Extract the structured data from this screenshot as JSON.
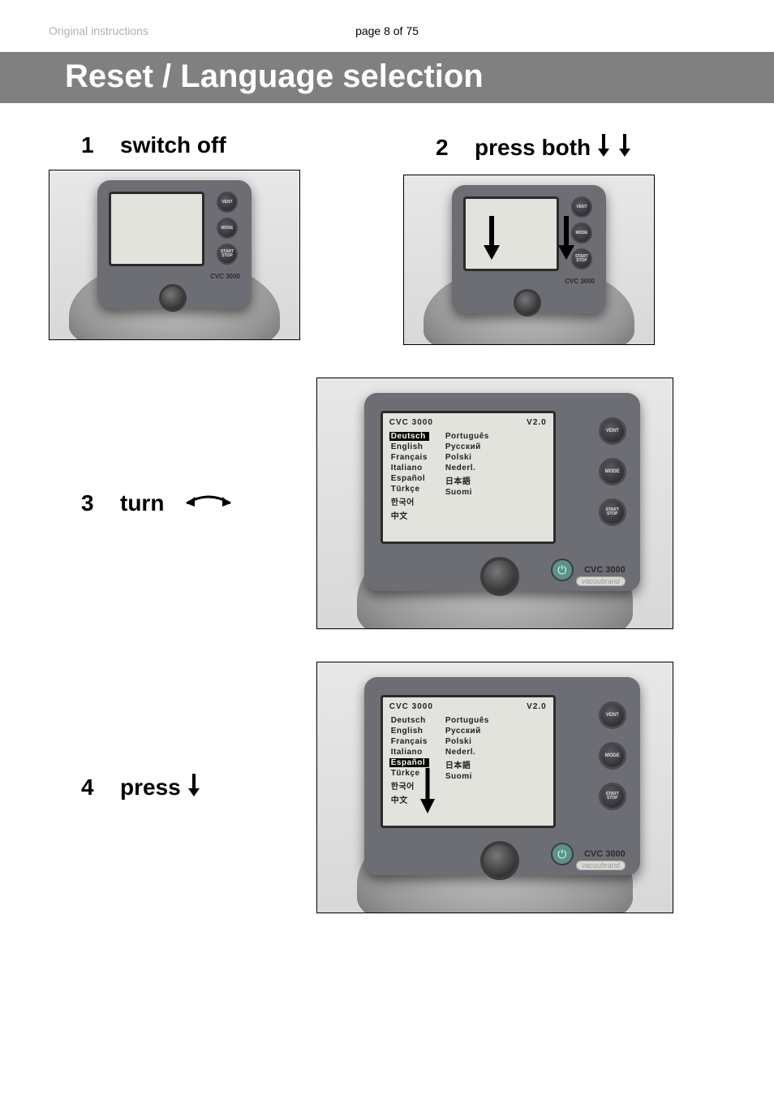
{
  "meta": {
    "doc_type": "Original instructions",
    "page_info": "page 8 of 75"
  },
  "title": "Reset  /  Language selection",
  "steps": {
    "s1": {
      "num": "1",
      "text": "switch off"
    },
    "s2": {
      "num": "2",
      "text": "press both"
    },
    "s3": {
      "num": "3",
      "text": "turn"
    },
    "s4": {
      "num": "4",
      "text": "press"
    }
  },
  "device": {
    "model": "CVC 3000",
    "brand": "vacuubrand",
    "buttons": {
      "vent": "VENT",
      "mode": "MODE",
      "start": "START\nSTOP"
    },
    "screen": {
      "title_left": "CVC 3000",
      "title_right": "V2.0",
      "langs_col1": [
        "Deutsch",
        "English",
        "Français",
        "Italiano",
        "Español",
        "Türkçe",
        "한국어",
        "中文"
      ],
      "langs_col2": [
        "Português",
        "Русский",
        "Polski",
        "Nederl.",
        "日本語",
        "Suomi"
      ],
      "selected_step3": "Deutsch",
      "selected_step4": "Español"
    }
  },
  "style": {
    "title_bg": "#808080",
    "title_fg": "#ffffff",
    "device_body": "#6d6d74",
    "screen_bg": "#e2e3dc",
    "highlight_bg": "#000000",
    "highlight_fg": "#ffffff",
    "power_btn": "#5f918b"
  }
}
